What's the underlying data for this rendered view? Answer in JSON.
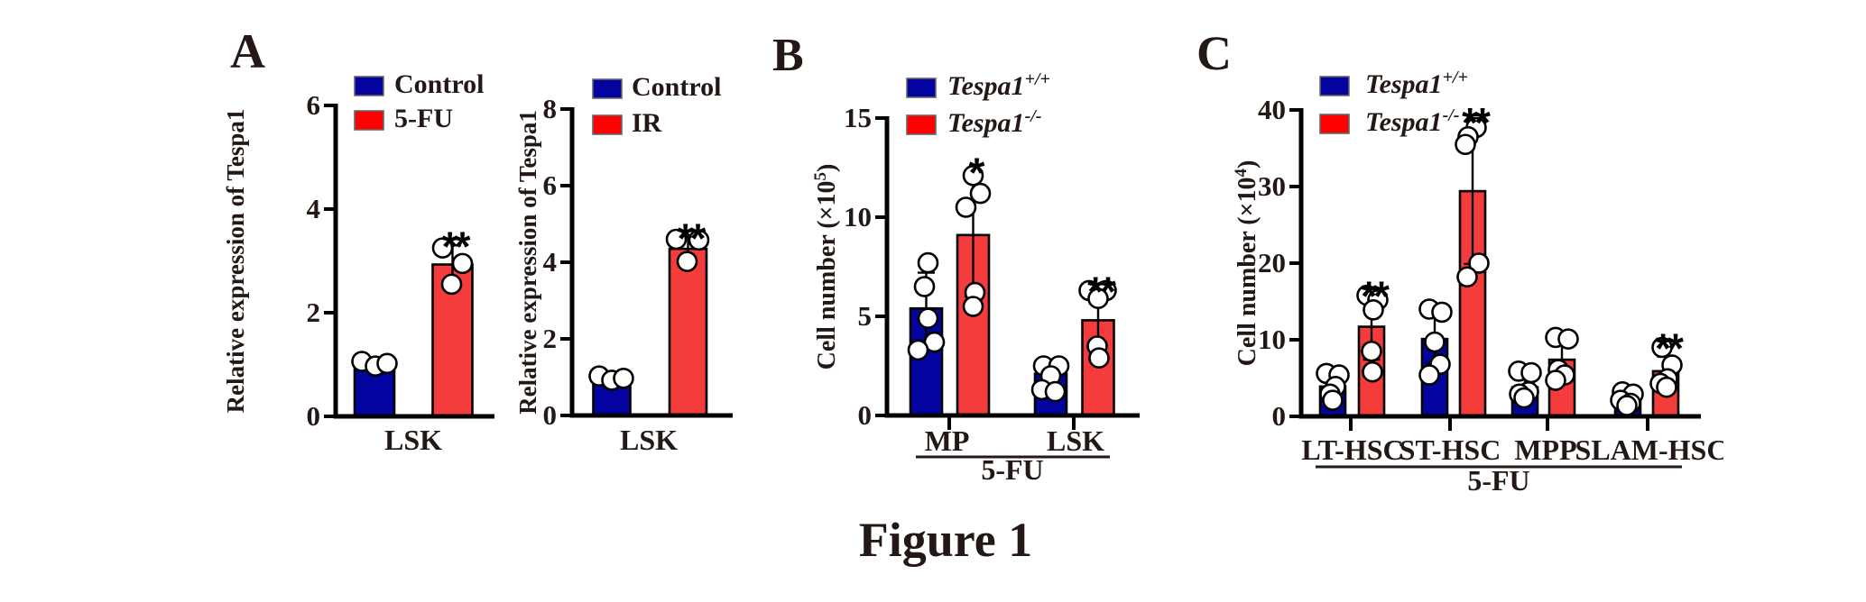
{
  "figure_caption": "Figure 1",
  "panels": {
    "a": "A",
    "b": "B",
    "c": "C"
  },
  "colors": {
    "blue": "#0303A0",
    "red_bar": "#F53C3C",
    "red_legend": "#FF0000",
    "text": "#231815",
    "axis": "#000000",
    "point_fill": "#FFFFFF"
  },
  "chart_data": [
    {
      "type": "bar",
      "panel": "A",
      "title": "",
      "ylabel": {
        "pre": "Relative expression of Tespa1",
        "sup": "",
        "post": ""
      },
      "ylim": [
        0,
        6
      ],
      "yticks": [
        0,
        2,
        4,
        6
      ],
      "grid": false,
      "legend_position": "top",
      "bar_colors": [
        "#0303A0",
        "#F53C3C"
      ],
      "legend": [
        {
          "label": "Control",
          "sup": "",
          "italic": false,
          "color": "#0303A0"
        },
        {
          "label": "5-FU",
          "sup": "",
          "italic": false,
          "color": "#FF0000"
        }
      ],
      "groups": [
        {
          "label": "LSK",
          "bars": [
            {
              "series": "Control",
              "value": 1.0,
              "err_lo": 0.9,
              "err_hi": 1.12,
              "sig": "",
              "points": [
                [
                  -14,
                  1.06
                ],
                [
                  1,
                  0.97
                ],
                [
                  14,
                  1.02
                ]
              ]
            },
            {
              "series": "5-FU",
              "value": 2.93,
              "err_lo": 2.5,
              "err_hi": 3.3,
              "sig": "**",
              "points": [
                [
                  -11,
                  3.25
                ],
                [
                  11,
                  2.95
                ],
                [
                  -1,
                  2.55
                ]
              ]
            }
          ]
        }
      ],
      "footer": ""
    },
    {
      "type": "bar",
      "panel": "A",
      "title": "",
      "ylabel": {
        "pre": "Relative expression of Tespa1",
        "sup": "",
        "post": ""
      },
      "ylim": [
        0,
        8
      ],
      "yticks": [
        0,
        2,
        4,
        6,
        8
      ],
      "grid": false,
      "legend_position": "top",
      "bar_colors": [
        "#0303A0",
        "#F53C3C"
      ],
      "legend": [
        {
          "label": "Control",
          "sup": "",
          "italic": false,
          "color": "#0303A0"
        },
        {
          "label": "IR",
          "sup": "",
          "italic": false,
          "color": "#FF0000"
        }
      ],
      "groups": [
        {
          "label": "LSK",
          "bars": [
            {
              "series": "Control",
              "value": 1.0,
              "err_lo": 0.88,
              "err_hi": 1.1,
              "sig": "",
              "points": [
                [
                  -14,
                  1.03
                ],
                [
                  0,
                  0.92
                ],
                [
                  13,
                  0.97
                ]
              ]
            },
            {
              "series": "IR",
              "value": 4.35,
              "err_lo": 3.95,
              "err_hi": 4.65,
              "sig": "**",
              "points": [
                [
                  -13,
                  4.6
                ],
                [
                  12,
                  4.58
                ],
                [
                  -1,
                  4.02
                ]
              ]
            }
          ]
        }
      ],
      "footer": ""
    },
    {
      "type": "bar",
      "panel": "B",
      "title": "",
      "ylabel": {
        "pre": "Cell number (×10",
        "sup": "5",
        "post": ")"
      },
      "ylim": [
        0,
        15
      ],
      "yticks": [
        0,
        5,
        10,
        15
      ],
      "grid": false,
      "legend_position": "top",
      "bar_colors": [
        "#0303A0",
        "#F53C3C"
      ],
      "legend": [
        {
          "label": "Tespa1",
          "sup": "+/+",
          "italic": true,
          "color": "#0303A0"
        },
        {
          "label": "Tespa1",
          "sup": "-/-",
          "italic": true,
          "color": "#FF0000"
        }
      ],
      "groups": [
        {
          "label": "MP",
          "bars": [
            {
              "series": "Tespa1+/+",
              "value": 5.4,
              "err_lo": 3.7,
              "err_hi": 7.2,
              "sig": "",
              "points": [
                [
                  2,
                  7.7
                ],
                [
                  -2,
                  6.5
                ],
                [
                  2,
                  4.9
                ],
                [
                  9,
                  3.7
                ],
                [
                  -9,
                  3.3
                ]
              ]
            },
            {
              "series": "Tespa1-/-",
              "value": 9.1,
              "err_lo": 6.0,
              "err_hi": 12.3,
              "sig": "*",
              "points": [
                [
                  0,
                  12.1
                ],
                [
                  8,
                  11.2
                ],
                [
                  -8,
                  10.5
                ],
                [
                  2,
                  6.2
                ],
                [
                  0,
                  5.5
                ]
              ]
            }
          ]
        },
        {
          "label": "LSK",
          "bars": [
            {
              "series": "Tespa1+/+",
              "value": 2.1,
              "err_lo": 1.3,
              "err_hi": 2.6,
              "sig": "",
              "points": [
                [
                  -8,
                  2.5
                ],
                [
                  9,
                  2.5
                ],
                [
                  0,
                  2.0
                ],
                [
                  -10,
                  1.3
                ],
                [
                  5,
                  1.2
                ]
              ]
            },
            {
              "series": "Tespa1-/-",
              "value": 4.8,
              "err_lo": 3.3,
              "err_hi": 6.2,
              "sig": "**",
              "points": [
                [
                  -10,
                  6.3
                ],
                [
                  9,
                  6.3
                ],
                [
                  0,
                  5.9
                ],
                [
                  -1,
                  3.5
                ],
                [
                  1,
                  2.9
                ]
              ]
            }
          ]
        }
      ],
      "footer": "5-FU"
    },
    {
      "type": "bar",
      "panel": "C",
      "title": "",
      "ylabel": {
        "pre": "Cell number (×10",
        "sup": "4",
        "post": ")"
      },
      "ylim": [
        0,
        40
      ],
      "yticks": [
        0,
        10,
        20,
        30,
        40
      ],
      "grid": false,
      "legend_position": "top",
      "bar_colors": [
        "#0303A0",
        "#F53C3C"
      ],
      "legend": [
        {
          "label": "Tespa1",
          "sup": "+/+",
          "italic": true,
          "color": "#0303A0"
        },
        {
          "label": "Tespa1",
          "sup": "-/-",
          "italic": true,
          "color": "#FF0000"
        }
      ],
      "groups": [
        {
          "label": "LT-HSC",
          "bars": [
            {
              "series": "Tespa1+/+",
              "value": 3.9,
              "err_lo": 2.4,
              "err_hi": 5.5,
              "sig": "",
              "points": [
                [
                  -7,
                  5.6
                ],
                [
                  7,
                  5.4
                ],
                [
                  3,
                  3.9
                ],
                [
                  -3,
                  2.9
                ],
                [
                  0,
                  2.1
                ]
              ]
            },
            {
              "series": "Tespa1-/-",
              "value": 11.7,
              "err_lo": 7.4,
              "err_hi": 15.5,
              "sig": "**",
              "points": [
                [
                  -5,
                  15.8
                ],
                [
                  7,
                  15.2
                ],
                [
                  2,
                  13.9
                ],
                [
                  0,
                  8.5
                ],
                [
                  1,
                  5.8
                ]
              ]
            }
          ]
        },
        {
          "label": "ST-HSC",
          "bars": [
            {
              "series": "Tespa1+/+",
              "value": 10.1,
              "err_lo": 6.9,
              "err_hi": 13.5,
              "sig": "",
              "points": [
                [
                  -6,
                  14.0
                ],
                [
                  8,
                  13.6
                ],
                [
                  0,
                  9.7
                ],
                [
                  6,
                  6.8
                ],
                [
                  -6,
                  5.4
                ]
              ]
            },
            {
              "series": "Tespa1-/-",
              "value": 29.4,
              "err_lo": 19.9,
              "err_hi": 38.5,
              "sig": "**",
              "points": [
                [
                  4,
                  37.7
                ],
                [
                  -5,
                  36.5
                ],
                [
                  -8,
                  35.5
                ],
                [
                  7,
                  20.0
                ],
                [
                  -6,
                  18.2
                ]
              ]
            }
          ]
        },
        {
          "label": "MPP",
          "bars": [
            {
              "series": "Tespa1+/+",
              "value": 3.8,
              "err_lo": 2.2,
              "err_hi": 5.7,
              "sig": "",
              "points": [
                [
                  -7,
                  5.9
                ],
                [
                  7,
                  5.7
                ],
                [
                  4,
                  3.2
                ],
                [
                  -6,
                  2.9
                ],
                [
                  -1,
                  2.4
                ]
              ]
            },
            {
              "series": "Tespa1-/-",
              "value": 7.4,
              "err_lo": 4.8,
              "err_hi": 10.3,
              "sig": "",
              "points": [
                [
                  -7,
                  10.3
                ],
                [
                  7,
                  10.1
                ],
                [
                  -4,
                  6.1
                ],
                [
                  3,
                  5.4
                ],
                [
                  -7,
                  4.7
                ]
              ]
            }
          ]
        },
        {
          "label": "SLAM-HSC",
          "bars": [
            {
              "series": "Tespa1+/+",
              "value": 2.2,
              "err_lo": 1.4,
              "err_hi": 3.1,
              "sig": "",
              "points": [
                [
                  -6,
                  3.2
                ],
                [
                  6,
                  2.9
                ],
                [
                  -8,
                  2.1
                ],
                [
                  3,
                  1.7
                ],
                [
                  -1,
                  1.4
                ]
              ]
            },
            {
              "series": "Tespa1-/-",
              "value": 5.9,
              "err_lo": 4.1,
              "err_hi": 7.8,
              "sig": "**",
              "points": [
                [
                  -4,
                  9.0
                ],
                [
                  7,
                  6.7
                ],
                [
                  2,
                  4.9
                ],
                [
                  -6,
                  4.3
                ],
                [
                  1,
                  3.8
                ]
              ]
            }
          ]
        }
      ],
      "footer": "5-FU"
    }
  ]
}
